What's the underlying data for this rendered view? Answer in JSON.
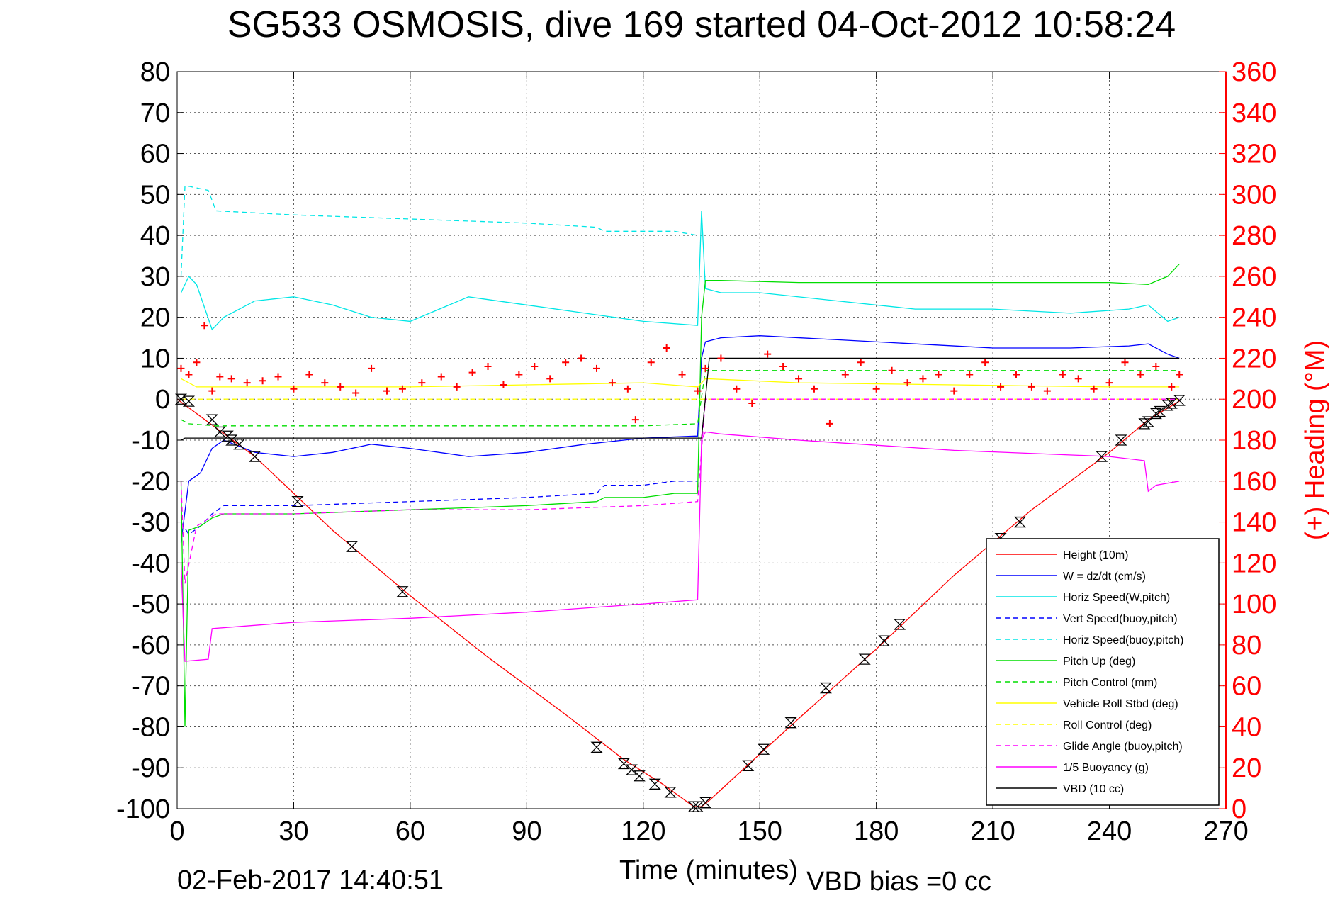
{
  "chart_data": {
    "type": "line",
    "title": "SG533 OSMOSIS, dive 169 started 04-Oct-2012 10:58:24",
    "xlabel": "Time (minutes)",
    "ylabel_right": "(+) Heading (°M)",
    "footer_date": "02-Feb-2017 14:40:51",
    "footer_vbd": "VBD bias =0 cc",
    "xlim": [
      0,
      270
    ],
    "ylim": [
      -100,
      80
    ],
    "ylim_right": [
      0,
      360
    ],
    "grid": true,
    "legend_position": "bottom-right",
    "x_ticks": [
      0,
      30,
      60,
      90,
      120,
      150,
      180,
      210,
      240,
      270
    ],
    "y_ticks": [
      80,
      70,
      60,
      50,
      40,
      30,
      20,
      10,
      0,
      -10,
      -20,
      -30,
      -40,
      -50,
      -60,
      -70,
      -80,
      -90,
      -100
    ],
    "y_ticks_right": [
      360,
      340,
      320,
      300,
      280,
      260,
      240,
      220,
      200,
      180,
      160,
      140,
      120,
      100,
      80,
      60,
      40,
      20,
      0
    ],
    "colors": {
      "height": "#ff0000",
      "w": "#0000ff",
      "horiz_speed": "#00e6e6",
      "vert_speed_buoy": "#0000ff",
      "horiz_speed_buoy": "#00e6e6",
      "pitch_up": "#00dd00",
      "pitch_control": "#00dd00",
      "roll": "#ffff00",
      "roll_control": "#ffff00",
      "glide_angle": "#ff00ff",
      "buoyancy": "#ff00ff",
      "vbd": "#000000",
      "heading": "#ff0000",
      "right_axis": "#ff0000"
    },
    "series": [
      {
        "key": "height",
        "name": "Height (10m)",
        "color": "#ff0000",
        "dash": false,
        "axis": "left",
        "x": [
          0,
          20,
          40,
          60,
          80,
          100,
          115,
          125,
          133,
          135,
          137,
          145,
          160,
          180,
          200,
          220,
          240,
          250,
          258
        ],
        "y": [
          0,
          -14,
          -32,
          -48,
          -63,
          -77,
          -88,
          -94,
          -99.5,
          -99.5,
          -98,
          -91,
          -78,
          -61,
          -43,
          -27,
          -13,
          -5,
          -0.5
        ]
      },
      {
        "key": "w",
        "name": "W = dz/dt (cm/s)",
        "color": "#0000ff",
        "dash": false,
        "axis": "left",
        "x": [
          1,
          3,
          6,
          9,
          12,
          20,
          30,
          40,
          50,
          60,
          75,
          90,
          105,
          120,
          134,
          135,
          136,
          140,
          150,
          170,
          190,
          210,
          230,
          245,
          250,
          255,
          258
        ],
        "y": [
          -35,
          -20,
          -18,
          -12,
          -10,
          -13,
          -14,
          -13,
          -11,
          -12,
          -14,
          -13,
          -11,
          -9.5,
          -9,
          10,
          14,
          15,
          15.5,
          14.5,
          13.5,
          12.5,
          12.5,
          13,
          13.5,
          11,
          10
        ]
      },
      {
        "key": "horiz_speed",
        "name": "Horiz Speed(W,pitch)",
        "color": "#00e6e6",
        "dash": false,
        "axis": "left",
        "x": [
          1,
          3,
          5,
          9,
          12,
          20,
          30,
          40,
          50,
          60,
          75,
          90,
          105,
          120,
          134,
          135,
          136,
          140,
          150,
          170,
          190,
          210,
          230,
          245,
          250,
          255,
          258
        ],
        "y": [
          26,
          30,
          28,
          17,
          20,
          24,
          25,
          23,
          20,
          19,
          25,
          23,
          21,
          19,
          18,
          46,
          27,
          26,
          26,
          24,
          22,
          22,
          21,
          22,
          23,
          19,
          20
        ]
      },
      {
        "key": "vert_speed_buoy",
        "name": "Vert Speed(buoy,pitch)",
        "color": "#0000ff",
        "dash": true,
        "axis": "left",
        "x": [
          1,
          3,
          6,
          9,
          12,
          30,
          60,
          90,
          108,
          110,
          120,
          128,
          134
        ],
        "y": [
          -30,
          -33,
          -31,
          -28,
          -26,
          -26,
          -25,
          -24,
          -23,
          -21,
          -21,
          -20,
          -20
        ]
      },
      {
        "key": "horiz_speed_buoy",
        "name": "Horiz Speed(buoy,pitch)",
        "color": "#00e6e6",
        "dash": true,
        "axis": "left",
        "x": [
          1,
          2,
          3,
          8,
          10,
          30,
          60,
          90,
          108,
          110,
          120,
          128,
          134
        ],
        "y": [
          30,
          52,
          52,
          51,
          46,
          45,
          44,
          43,
          42,
          41,
          41,
          41,
          40
        ]
      },
      {
        "key": "pitch_up",
        "name": "Pitch Up (deg)",
        "color": "#00dd00",
        "dash": false,
        "axis": "left",
        "x": [
          1,
          2,
          3,
          6,
          9,
          12,
          30,
          60,
          90,
          108,
          110,
          120,
          128,
          134,
          135,
          136,
          140,
          160,
          190,
          220,
          240,
          250,
          255,
          258
        ],
        "y": [
          -20,
          -80,
          -32,
          -31,
          -29,
          -28,
          -28,
          -27,
          -26,
          -25,
          -24,
          -24,
          -23,
          -23,
          20,
          29,
          29,
          28.5,
          28.5,
          28.5,
          28.5,
          28,
          30,
          33
        ]
      },
      {
        "key": "pitch_control",
        "name": "Pitch Control (mm)",
        "color": "#00dd00",
        "dash": true,
        "axis": "left",
        "x": [
          1,
          3,
          10,
          60,
          120,
          134,
          136,
          160,
          200,
          240,
          258
        ],
        "y": [
          -5,
          -6,
          -6.5,
          -6.5,
          -6.5,
          -6,
          7,
          7,
          7,
          7,
          7
        ]
      },
      {
        "key": "roll",
        "name": "Vehicle Roll Stbd (deg)",
        "color": "#ffff00",
        "dash": false,
        "axis": "left",
        "x": [
          1,
          5,
          10,
          30,
          60,
          90,
          120,
          134,
          136,
          160,
          200,
          240,
          258
        ],
        "y": [
          5,
          3,
          3,
          3,
          3,
          3.5,
          4,
          3,
          5,
          4,
          3.5,
          3,
          3
        ]
      },
      {
        "key": "roll_control",
        "name": "Roll Control (deg)",
        "color": "#ffff00",
        "dash": true,
        "axis": "left",
        "x": [
          1,
          258
        ],
        "y": [
          0,
          0
        ]
      },
      {
        "key": "glide_angle",
        "name": "Glide Angle (buoy,pitch)",
        "color": "#ff00ff",
        "dash": true,
        "axis": "left",
        "x": [
          1,
          2,
          5,
          10,
          30,
          60,
          90,
          120,
          134,
          136,
          258
        ],
        "y": [
          -20,
          -45,
          -31,
          -28,
          -28,
          -27,
          -27,
          -26,
          -25,
          0,
          0
        ]
      },
      {
        "key": "buoyancy",
        "name": "1/5 Buoyancy (g)",
        "color": "#ff00ff",
        "dash": false,
        "axis": "left",
        "x": [
          1,
          2,
          8,
          9,
          30,
          60,
          90,
          120,
          134,
          135,
          136,
          140,
          160,
          200,
          240,
          249,
          250,
          252,
          258
        ],
        "y": [
          -40,
          -64,
          -63.5,
          -56,
          -54.5,
          -53.5,
          -52,
          -50,
          -49,
          -10,
          -8,
          -8.5,
          -10,
          -12.5,
          -14,
          -15,
          -22.5,
          -21,
          -20
        ]
      },
      {
        "key": "vbd",
        "name": "VBD (10 cc)",
        "color": "#000000",
        "dash": false,
        "axis": "left",
        "x": [
          1,
          2,
          133,
          135,
          137,
          258
        ],
        "y": [
          -10,
          -9.5,
          -9.5,
          -9.5,
          10,
          10
        ]
      }
    ],
    "heading": {
      "name": "Heading",
      "color": "#ff0000",
      "marker": "+",
      "axis": "right",
      "x": [
        1,
        3,
        5,
        7,
        9,
        11,
        14,
        18,
        22,
        26,
        30,
        34,
        38,
        42,
        46,
        50,
        54,
        58,
        63,
        68,
        72,
        76,
        80,
        84,
        88,
        92,
        96,
        100,
        104,
        108,
        112,
        116,
        118,
        122,
        126,
        130,
        134,
        136,
        140,
        144,
        148,
        152,
        156,
        160,
        164,
        168,
        172,
        176,
        180,
        184,
        188,
        192,
        196,
        200,
        204,
        208,
        212,
        216,
        220,
        224,
        228,
        232,
        236,
        240,
        244,
        248,
        252,
        256,
        258
      ],
      "y": [
        215,
        212,
        218,
        236,
        204,
        211,
        210,
        208,
        209,
        211,
        205,
        212,
        208,
        206,
        203,
        215,
        204,
        205,
        208,
        211,
        206,
        213,
        216,
        207,
        212,
        216,
        210,
        218,
        220,
        215,
        208,
        205,
        190,
        218,
        225,
        212,
        204,
        215,
        220,
        205,
        198,
        222,
        216,
        210,
        205,
        188,
        212,
        218,
        205,
        214,
        208,
        210,
        212,
        204,
        212,
        218,
        206,
        212,
        206,
        204,
        212,
        210,
        205,
        208,
        218,
        212,
        216,
        206,
        212
      ]
    },
    "waypoints": {
      "marker": "hourglass",
      "color": "#000000",
      "x": [
        1,
        3,
        9,
        11,
        13,
        14,
        16,
        20,
        31,
        45,
        58,
        108,
        115,
        117,
        119,
        123,
        127,
        133,
        134,
        136,
        147,
        151,
        158,
        167,
        177,
        182,
        186,
        212,
        217,
        238,
        243,
        249,
        250,
        252,
        253,
        255,
        256,
        258
      ],
      "y": [
        0,
        -0.5,
        -5,
        -8,
        -9,
        -10,
        -11,
        -14,
        -25,
        -36,
        -47,
        -85,
        -89,
        -90.5,
        -92,
        -94,
        -96,
        -99.5,
        -99.5,
        -98.5,
        -89.5,
        -85.5,
        -79,
        -70.5,
        -63.5,
        -59,
        -55,
        -34,
        -30,
        -14,
        -10,
        -6,
        -5.5,
        -3.5,
        -3,
        -1.5,
        -1,
        -0.3
      ]
    }
  }
}
